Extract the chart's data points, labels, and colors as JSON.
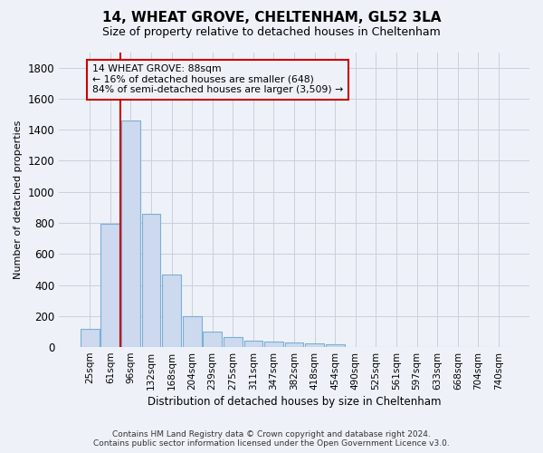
{
  "title": "14, WHEAT GROVE, CHELTENHAM, GL52 3LA",
  "subtitle": "Size of property relative to detached houses in Cheltenham",
  "xlabel": "Distribution of detached houses by size in Cheltenham",
  "ylabel": "Number of detached properties",
  "footer_line1": "Contains HM Land Registry data © Crown copyright and database right 2024.",
  "footer_line2": "Contains public sector information licensed under the Open Government Licence v3.0.",
  "bar_labels": [
    "25sqm",
    "61sqm",
    "96sqm",
    "132sqm",
    "168sqm",
    "204sqm",
    "239sqm",
    "275sqm",
    "311sqm",
    "347sqm",
    "382sqm",
    "418sqm",
    "454sqm",
    "490sqm",
    "525sqm",
    "561sqm",
    "597sqm",
    "633sqm",
    "668sqm",
    "704sqm",
    "740sqm"
  ],
  "bar_values": [
    120,
    795,
    1460,
    860,
    470,
    200,
    100,
    65,
    40,
    35,
    30,
    25,
    15,
    0,
    0,
    0,
    0,
    0,
    0,
    0,
    0
  ],
  "bar_color": "#ccd9ef",
  "bar_edgecolor": "#7bafd4",
  "ylim": [
    0,
    1900
  ],
  "yticks": [
    0,
    200,
    400,
    600,
    800,
    1000,
    1200,
    1400,
    1600,
    1800
  ],
  "property_line_color": "#cc0000",
  "annotation_line1": "14 WHEAT GROVE: 88sqm",
  "annotation_line2": "← 16% of detached houses are smaller (648)",
  "annotation_line3": "84% of semi-detached houses are larger (3,509) →",
  "bg_color": "#eef2f8",
  "grid_color": "#c8d0dc"
}
